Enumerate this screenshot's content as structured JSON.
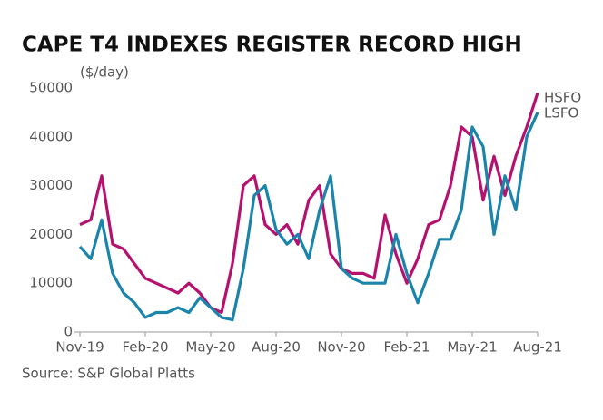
{
  "chart_data": {
    "type": "line",
    "title": "CAPE T4 INDEXES REGISTER RECORD HIGH",
    "subtitle": "($/day)",
    "source": "Source: S&P Global Platts",
    "categories": [
      "Nov-19",
      null,
      null,
      null,
      null,
      null,
      "Feb-20",
      null,
      null,
      null,
      null,
      null,
      "May-20",
      null,
      null,
      null,
      null,
      null,
      "Aug-20",
      null,
      null,
      null,
      null,
      null,
      "Nov-20",
      null,
      null,
      null,
      null,
      null,
      "Feb-21",
      null,
      null,
      null,
      null,
      null,
      "May-21",
      null,
      null,
      null,
      null,
      null,
      "Aug-21"
    ],
    "series": [
      {
        "name": "HSFO",
        "color": "#b5116f",
        "values": [
          22000,
          23000,
          32000,
          18000,
          17000,
          14000,
          11000,
          10000,
          9000,
          8000,
          10000,
          8000,
          5000,
          4000,
          14000,
          30000,
          32000,
          22000,
          20000,
          22000,
          18000,
          27000,
          30000,
          16000,
          13000,
          12000,
          12000,
          11000,
          24000,
          16000,
          10000,
          15000,
          22000,
          23000,
          30000,
          42000,
          40000,
          27000,
          36000,
          28000,
          36000,
          42000,
          49000
        ]
      },
      {
        "name": "LSFO",
        "color": "#1b84ab",
        "values": [
          17500,
          15000,
          23000,
          12000,
          8000,
          6000,
          3000,
          4000,
          4000,
          5000,
          4000,
          7000,
          5000,
          3000,
          2500,
          13000,
          28000,
          30000,
          21000,
          18000,
          20000,
          15000,
          25000,
          32000,
          13000,
          11000,
          10000,
          10000,
          10000,
          20000,
          12000,
          6000,
          12000,
          19000,
          19000,
          25000,
          42000,
          38000,
          20000,
          32000,
          25000,
          40000,
          45000
        ]
      }
    ],
    "ylim": [
      0,
      50000
    ],
    "yticks": [
      0,
      10000,
      20000,
      30000,
      40000,
      50000
    ],
    "grid": false
  }
}
